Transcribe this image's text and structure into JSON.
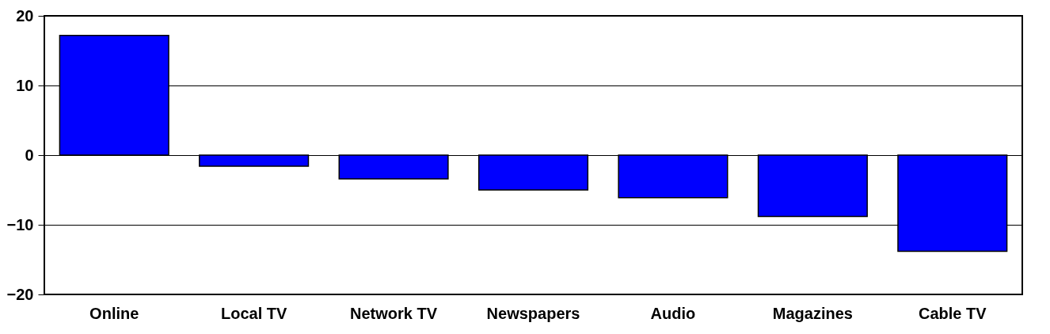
{
  "chart_data": {
    "type": "bar",
    "categories": [
      "Online",
      "Local TV",
      "Network TV",
      "Newspapers",
      "Audio",
      "Magazines",
      "Cable TV"
    ],
    "values": [
      17.2,
      -1.6,
      -3.4,
      -5.0,
      -6.1,
      -8.8,
      -13.8
    ],
    "color": "#0000ff",
    "ylim": [
      -20,
      20
    ],
    "yticks": [
      -20,
      -10,
      0,
      10,
      20
    ],
    "grid": "y"
  }
}
